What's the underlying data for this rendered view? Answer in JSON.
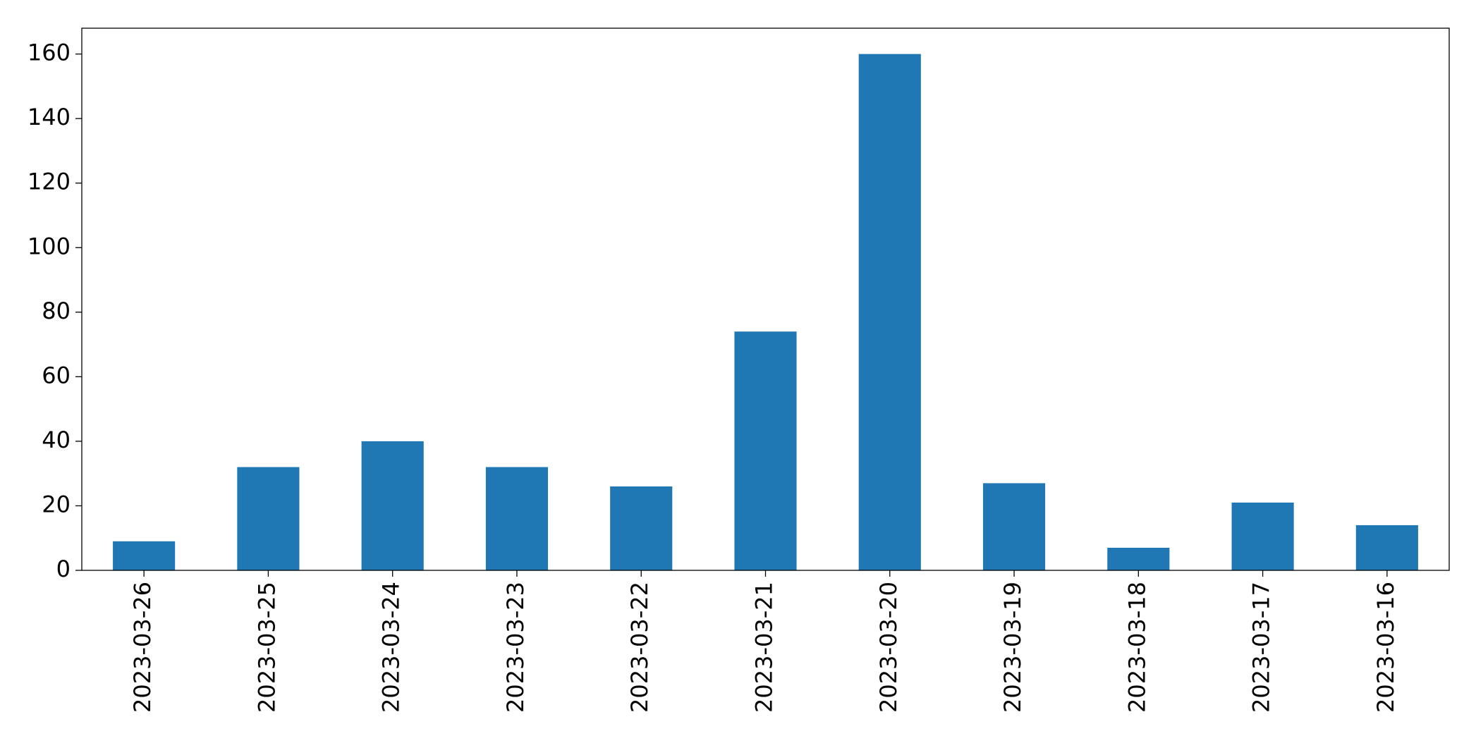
{
  "chart_data": {
    "type": "bar",
    "categories": [
      "2023-03-26",
      "2023-03-25",
      "2023-03-24",
      "2023-03-23",
      "2023-03-22",
      "2023-03-21",
      "2023-03-20",
      "2023-03-19",
      "2023-03-18",
      "2023-03-17",
      "2023-03-16"
    ],
    "values": [
      9,
      32,
      40,
      32,
      26,
      74,
      160,
      27,
      7,
      21,
      14
    ],
    "color": "#1f77b4",
    "ylim": [
      0,
      168
    ],
    "yticks": [
      0,
      20,
      40,
      60,
      80,
      100,
      120,
      140,
      160
    ],
    "grid": false
  }
}
